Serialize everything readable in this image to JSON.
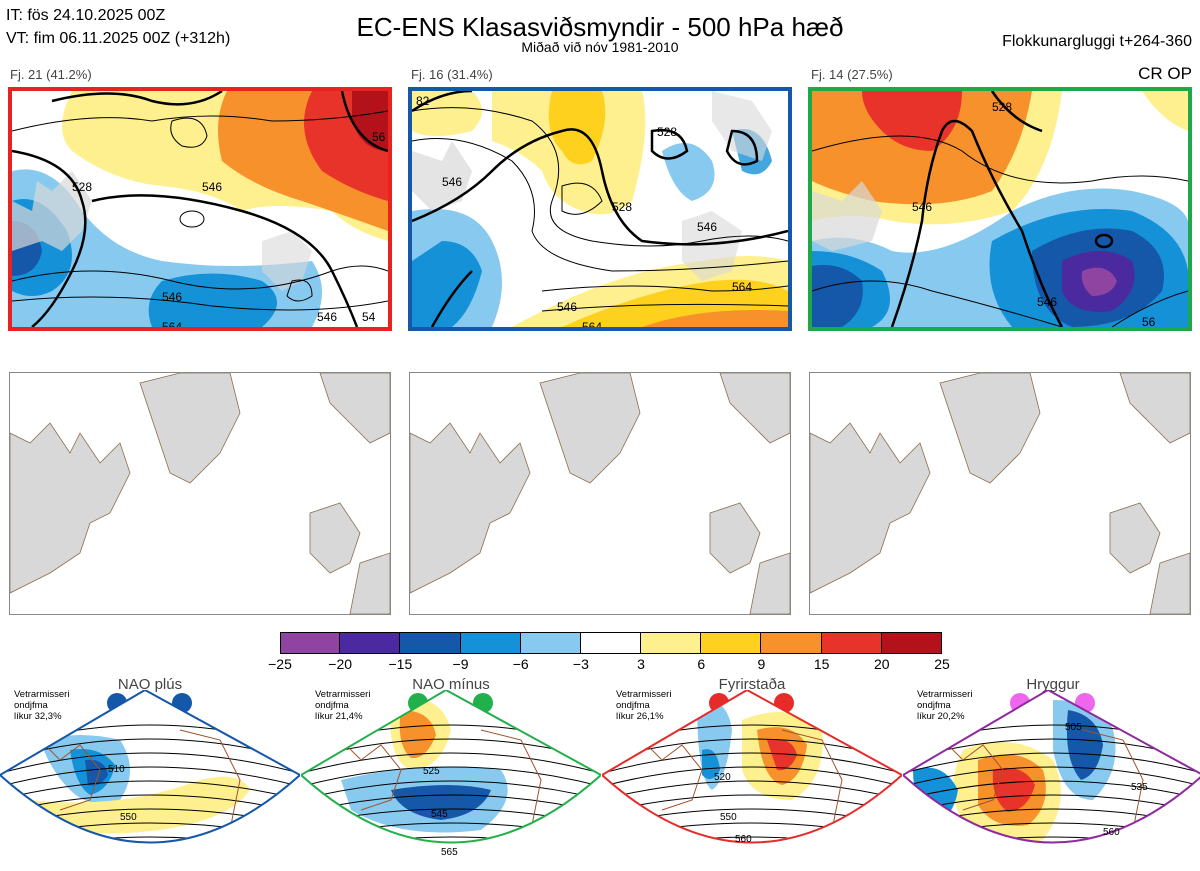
{
  "header": {
    "it_line": "IT: fös 24.10.2025 00Z",
    "vt_line": "VT: fim 06.11.2025 00Z  (+312h)",
    "title": "EC-ENS Klasasviðsmyndir - 500 hPa hæð",
    "subtitle": "Miðað við nóv 1981-2010",
    "window": "Flokkunargluggi t+264-360"
  },
  "clusters": [
    {
      "label": "Fj. 21 (41.2%)",
      "color": "#e8221f",
      "contour_labels": [
        "528",
        "546",
        "546",
        "564",
        "546",
        "56",
        "54"
      ]
    },
    {
      "label": "Fj. 16 (31.4%)",
      "color": "#1558a8",
      "contour_labels": [
        "546",
        "528",
        "528",
        "546",
        "564",
        "546",
        "564",
        "82"
      ]
    },
    {
      "label": "Fj. 14 (27.5%)",
      "color": "#1fa84a",
      "contour_labels": [
        "546",
        "528",
        "546",
        "56"
      ],
      "marker": "CR OP"
    }
  ],
  "colorbar": {
    "ticks": [
      "−25",
      "−20",
      "−15",
      "−9",
      "−6",
      "−3",
      "3",
      "6",
      "9",
      "15",
      "20",
      "25"
    ],
    "colors": [
      "#8e44a0",
      "#4a2a9e",
      "#1557a8",
      "#1591d8",
      "#87c9ef",
      "#ffffff",
      "#fef08e",
      "#fed11f",
      "#f6912c",
      "#e8332a",
      "#b3121b"
    ]
  },
  "regimes": [
    {
      "name": "NAO plús",
      "note": [
        "Vetrarmisseri",
        "ondjfma",
        "líkur 32,3%"
      ],
      "dot_color": "#1557a8",
      "border": "#1557a8",
      "contours": [
        "510",
        "550"
      ]
    },
    {
      "name": "NAO mínus",
      "note": [
        "Vetrarmisseri",
        "ondjfma",
        "líkur 21,4%"
      ],
      "dot_color": "#22b04c",
      "border": "#22b04c",
      "contours": [
        "525",
        "545",
        "565"
      ]
    },
    {
      "name": "Fyrirstaða",
      "note": [
        "Vetrarmisseri",
        "ondjfma",
        "líkur 26,1%"
      ],
      "dot_color": "#e62b28",
      "border": "#e62b28",
      "contours": [
        "520",
        "550",
        "560"
      ]
    },
    {
      "name": "Hryggur",
      "note": [
        "Vetrarmisseri",
        "ondjfma",
        "líkur 20,2%"
      ],
      "dot_color": "#ee66ee",
      "border": "#8e2a9e",
      "contours": [
        "505",
        "535",
        "560"
      ]
    }
  ]
}
